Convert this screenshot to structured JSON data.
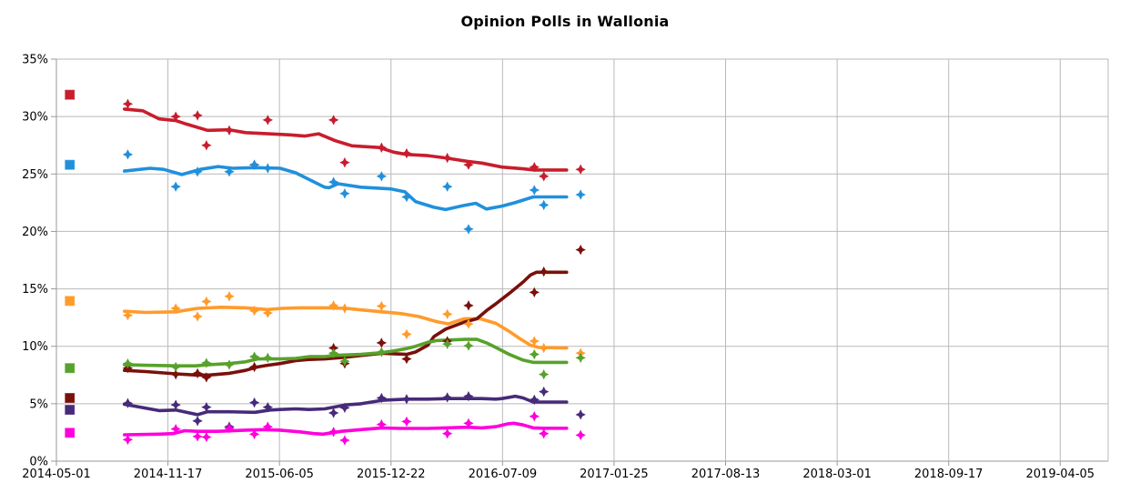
{
  "title": "Opinion Polls in Wallonia",
  "chart_data": {
    "type": "line",
    "title": "Opinion Polls in Wallonia",
    "xlabel": "",
    "ylabel": "",
    "grid": true,
    "legend_position": "none",
    "x_axis": {
      "unit": "date",
      "tick_labels": [
        "2014-05-01",
        "2014-11-17",
        "2015-06-05",
        "2015-12-22",
        "2016-07-09",
        "2017-01-25",
        "2017-08-13",
        "2018-03-01",
        "2018-09-17",
        "2019-04-05"
      ],
      "tick_spacing_days": 200,
      "domain_days": [
        0,
        1886
      ]
    },
    "y_axis": {
      "min": 0,
      "max": 35,
      "step": 5,
      "tick_labels": [
        "0%",
        "5%",
        "10%",
        "15%",
        "20%",
        "25%",
        "30%",
        "35%"
      ]
    },
    "colors": {
      "grid": "#b9b9b9",
      "axis": "#9a9a9a",
      "text": "#000000"
    },
    "series_start_markers_day": 24,
    "series": [
      {
        "id": "red",
        "color": "#c81d2d",
        "start_value": 31.9,
        "trend": [
          [
            122,
            30.65
          ],
          [
            155,
            30.5
          ],
          [
            184,
            29.8
          ],
          [
            214,
            29.65
          ],
          [
            233,
            29.35
          ],
          [
            271,
            28.8
          ],
          [
            310,
            28.85
          ],
          [
            339,
            28.6
          ],
          [
            380,
            28.5
          ],
          [
            420,
            28.4
          ],
          [
            445,
            28.3
          ],
          [
            470,
            28.5
          ],
          [
            500,
            27.9
          ],
          [
            530,
            27.45
          ],
          [
            579,
            27.3
          ],
          [
            605,
            26.9
          ],
          [
            628,
            26.7
          ],
          [
            666,
            26.6
          ],
          [
            698,
            26.4
          ],
          [
            737,
            26.1
          ],
          [
            763,
            25.95
          ],
          [
            799,
            25.6
          ],
          [
            837,
            25.45
          ],
          [
            857,
            25.35
          ],
          [
            915,
            25.35
          ]
        ],
        "polls": [
          [
            128,
            31.1
          ],
          [
            214,
            30.0
          ],
          [
            253,
            30.1
          ],
          [
            269,
            27.5
          ],
          [
            310,
            28.8
          ],
          [
            355,
            25.8
          ],
          [
            379,
            29.7
          ],
          [
            497,
            29.7
          ],
          [
            517,
            26.0
          ],
          [
            583,
            27.3
          ],
          [
            628,
            26.8
          ],
          [
            701,
            26.4
          ],
          [
            739,
            25.8
          ],
          [
            857,
            25.6
          ],
          [
            874,
            24.8
          ],
          [
            940,
            25.4
          ]
        ]
      },
      {
        "id": "blue",
        "color": "#2090dc",
        "start_value": 25.8,
        "trend": [
          [
            122,
            25.25
          ],
          [
            168,
            25.5
          ],
          [
            192,
            25.4
          ],
          [
            225,
            24.95
          ],
          [
            258,
            25.4
          ],
          [
            290,
            25.65
          ],
          [
            315,
            25.5
          ],
          [
            356,
            25.55
          ],
          [
            401,
            25.5
          ],
          [
            429,
            25.1
          ],
          [
            481,
            23.85
          ],
          [
            489,
            23.8
          ],
          [
            505,
            24.15
          ],
          [
            546,
            23.85
          ],
          [
            600,
            23.7
          ],
          [
            625,
            23.45
          ],
          [
            644,
            22.6
          ],
          [
            677,
            22.1
          ],
          [
            698,
            21.9
          ],
          [
            730,
            22.25
          ],
          [
            752,
            22.45
          ],
          [
            771,
            21.95
          ],
          [
            799,
            22.2
          ],
          [
            822,
            22.5
          ],
          [
            855,
            23.0
          ],
          [
            915,
            23.0
          ]
        ],
        "polls": [
          [
            128,
            26.7
          ],
          [
            214,
            23.9
          ],
          [
            253,
            25.2
          ],
          [
            310,
            25.2
          ],
          [
            355,
            25.8
          ],
          [
            379,
            25.5
          ],
          [
            497,
            24.3
          ],
          [
            517,
            23.3
          ],
          [
            583,
            24.8
          ],
          [
            628,
            23.0
          ],
          [
            701,
            23.9
          ],
          [
            739,
            20.2
          ],
          [
            857,
            23.6
          ],
          [
            874,
            22.3
          ],
          [
            940,
            23.2
          ]
        ]
      },
      {
        "id": "orange",
        "color": "#ff9b2b",
        "start_value": 13.95,
        "trend": [
          [
            122,
            13.05
          ],
          [
            160,
            12.95
          ],
          [
            214,
            13.0
          ],
          [
            253,
            13.3
          ],
          [
            295,
            13.4
          ],
          [
            339,
            13.35
          ],
          [
            378,
            13.2
          ],
          [
            405,
            13.3
          ],
          [
            437,
            13.35
          ],
          [
            481,
            13.35
          ],
          [
            519,
            13.3
          ],
          [
            551,
            13.15
          ],
          [
            584,
            13.0
          ],
          [
            617,
            12.85
          ],
          [
            649,
            12.6
          ],
          [
            682,
            12.15
          ],
          [
            703,
            11.95
          ],
          [
            731,
            12.4
          ],
          [
            760,
            12.4
          ],
          [
            788,
            12.0
          ],
          [
            812,
            11.3
          ],
          [
            830,
            10.7
          ],
          [
            850,
            10.1
          ],
          [
            865,
            9.9
          ],
          [
            915,
            9.85
          ]
        ],
        "polls": [
          [
            128,
            12.7
          ],
          [
            214,
            13.3
          ],
          [
            253,
            12.6
          ],
          [
            269,
            13.9
          ],
          [
            310,
            14.35
          ],
          [
            355,
            13.1
          ],
          [
            379,
            12.9
          ],
          [
            497,
            13.55
          ],
          [
            517,
            13.3
          ],
          [
            583,
            13.5
          ],
          [
            628,
            11.05
          ],
          [
            701,
            12.8
          ],
          [
            739,
            11.95
          ],
          [
            857,
            10.45
          ],
          [
            874,
            9.85
          ],
          [
            940,
            9.4
          ]
        ]
      },
      {
        "id": "dark-red",
        "color": "#7a100a",
        "start_value": 5.5,
        "trend": [
          [
            122,
            7.9
          ],
          [
            160,
            7.8
          ],
          [
            214,
            7.6
          ],
          [
            250,
            7.5
          ],
          [
            274,
            7.5
          ],
          [
            310,
            7.65
          ],
          [
            339,
            7.9
          ],
          [
            361,
            8.2
          ],
          [
            378,
            8.35
          ],
          [
            401,
            8.5
          ],
          [
            429,
            8.75
          ],
          [
            453,
            8.85
          ],
          [
            481,
            8.9
          ],
          [
            519,
            9.05
          ],
          [
            546,
            9.2
          ],
          [
            584,
            9.4
          ],
          [
            605,
            9.35
          ],
          [
            628,
            9.3
          ],
          [
            644,
            9.5
          ],
          [
            666,
            10.1
          ],
          [
            677,
            10.85
          ],
          [
            698,
            11.5
          ],
          [
            731,
            12.1
          ],
          [
            754,
            12.4
          ],
          [
            771,
            13.1
          ],
          [
            788,
            13.7
          ],
          [
            812,
            14.6
          ],
          [
            837,
            15.6
          ],
          [
            850,
            16.2
          ],
          [
            861,
            16.45
          ],
          [
            915,
            16.45
          ]
        ],
        "polls": [
          [
            128,
            8.1
          ],
          [
            214,
            7.55
          ],
          [
            253,
            7.65
          ],
          [
            269,
            7.3
          ],
          [
            355,
            8.2
          ],
          [
            497,
            9.85
          ],
          [
            517,
            8.5
          ],
          [
            583,
            10.3
          ],
          [
            628,
            8.9
          ],
          [
            701,
            10.45
          ],
          [
            739,
            13.55
          ],
          [
            857,
            14.7
          ],
          [
            874,
            16.5
          ],
          [
            940,
            18.4
          ]
        ]
      },
      {
        "id": "green",
        "color": "#57a22b",
        "start_value": 8.1,
        "trend": [
          [
            122,
            8.4
          ],
          [
            160,
            8.35
          ],
          [
            214,
            8.3
          ],
          [
            250,
            8.3
          ],
          [
            274,
            8.4
          ],
          [
            310,
            8.5
          ],
          [
            339,
            8.65
          ],
          [
            361,
            8.9
          ],
          [
            401,
            8.9
          ],
          [
            429,
            8.95
          ],
          [
            453,
            9.1
          ],
          [
            481,
            9.1
          ],
          [
            498,
            9.2
          ],
          [
            519,
            9.25
          ],
          [
            546,
            9.3
          ],
          [
            584,
            9.45
          ],
          [
            605,
            9.6
          ],
          [
            628,
            9.8
          ],
          [
            644,
            10.0
          ],
          [
            666,
            10.35
          ],
          [
            682,
            10.5
          ],
          [
            703,
            10.55
          ],
          [
            731,
            10.6
          ],
          [
            754,
            10.6
          ],
          [
            771,
            10.3
          ],
          [
            788,
            9.9
          ],
          [
            812,
            9.3
          ],
          [
            837,
            8.8
          ],
          [
            855,
            8.6
          ],
          [
            915,
            8.6
          ]
        ],
        "polls": [
          [
            128,
            8.5
          ],
          [
            214,
            8.2
          ],
          [
            269,
            8.55
          ],
          [
            310,
            8.4
          ],
          [
            355,
            9.1
          ],
          [
            379,
            9.0
          ],
          [
            497,
            9.4
          ],
          [
            517,
            8.7
          ],
          [
            583,
            9.5
          ],
          [
            701,
            10.2
          ],
          [
            739,
            10.05
          ],
          [
            857,
            9.3
          ],
          [
            874,
            7.55
          ],
          [
            940,
            9.0
          ]
        ]
      },
      {
        "id": "purple",
        "color": "#472a7a",
        "start_value": 4.47,
        "trend": [
          [
            122,
            4.95
          ],
          [
            184,
            4.4
          ],
          [
            214,
            4.45
          ],
          [
            253,
            4.05
          ],
          [
            271,
            4.3
          ],
          [
            310,
            4.3
          ],
          [
            356,
            4.25
          ],
          [
            383,
            4.45
          ],
          [
            401,
            4.5
          ],
          [
            429,
            4.55
          ],
          [
            453,
            4.5
          ],
          [
            481,
            4.55
          ],
          [
            519,
            4.9
          ],
          [
            546,
            5.0
          ],
          [
            584,
            5.3
          ],
          [
            628,
            5.4
          ],
          [
            666,
            5.4
          ],
          [
            703,
            5.45
          ],
          [
            737,
            5.45
          ],
          [
            763,
            5.45
          ],
          [
            788,
            5.4
          ],
          [
            799,
            5.45
          ],
          [
            823,
            5.65
          ],
          [
            837,
            5.5
          ],
          [
            855,
            5.15
          ],
          [
            873,
            5.15
          ],
          [
            915,
            5.15
          ]
        ],
        "polls": [
          [
            128,
            5.05
          ],
          [
            214,
            4.9
          ],
          [
            253,
            3.5
          ],
          [
            269,
            4.7
          ],
          [
            310,
            3.0
          ],
          [
            355,
            5.1
          ],
          [
            379,
            4.7
          ],
          [
            497,
            4.2
          ],
          [
            517,
            4.65
          ],
          [
            583,
            5.5
          ],
          [
            628,
            5.4
          ],
          [
            701,
            5.55
          ],
          [
            739,
            5.65
          ],
          [
            857,
            5.35
          ],
          [
            874,
            6.05
          ],
          [
            940,
            4.05
          ]
        ]
      },
      {
        "id": "magenta",
        "color": "#ff00dd",
        "start_value": 2.47,
        "trend": [
          [
            122,
            2.3
          ],
          [
            184,
            2.35
          ],
          [
            209,
            2.4
          ],
          [
            230,
            2.65
          ],
          [
            253,
            2.6
          ],
          [
            290,
            2.6
          ],
          [
            339,
            2.7
          ],
          [
            372,
            2.75
          ],
          [
            401,
            2.7
          ],
          [
            437,
            2.55
          ],
          [
            462,
            2.4
          ],
          [
            478,
            2.35
          ],
          [
            511,
            2.6
          ],
          [
            546,
            2.75
          ],
          [
            584,
            2.9
          ],
          [
            617,
            2.85
          ],
          [
            666,
            2.85
          ],
          [
            698,
            2.9
          ],
          [
            737,
            2.95
          ],
          [
            763,
            2.9
          ],
          [
            788,
            3.0
          ],
          [
            809,
            3.25
          ],
          [
            820,
            3.3
          ],
          [
            837,
            3.15
          ],
          [
            855,
            2.9
          ],
          [
            873,
            2.87
          ],
          [
            915,
            2.87
          ]
        ],
        "polls": [
          [
            128,
            1.87
          ],
          [
            214,
            2.8
          ],
          [
            253,
            2.15
          ],
          [
            269,
            2.1
          ],
          [
            310,
            2.87
          ],
          [
            355,
            2.35
          ],
          [
            379,
            3.0
          ],
          [
            497,
            2.55
          ],
          [
            517,
            1.82
          ],
          [
            583,
            3.2
          ],
          [
            628,
            3.45
          ],
          [
            701,
            2.4
          ],
          [
            739,
            3.3
          ],
          [
            857,
            3.9
          ],
          [
            874,
            2.4
          ],
          [
            940,
            2.27
          ]
        ]
      }
    ]
  }
}
